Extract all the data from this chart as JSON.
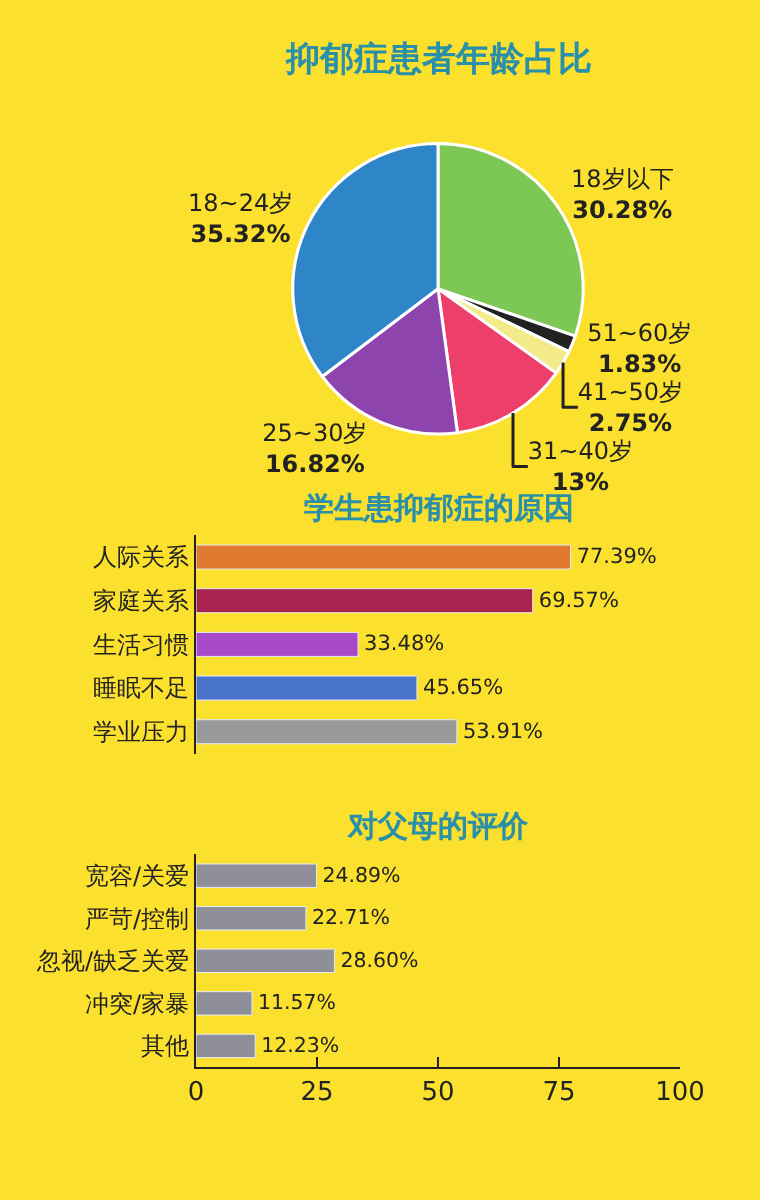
{
  "chart_data": [
    {
      "type": "pie",
      "title": "抑郁症患者年龄占比",
      "categories": [
        "18岁以下",
        "51~60岁",
        "41~50岁",
        "31~40岁",
        "25~30岁",
        "18~24岁"
      ],
      "values": [
        30.28,
        1.83,
        2.75,
        13,
        16.82,
        35.32
      ],
      "value_labels": [
        "30.28%",
        "1.83%",
        "2.75%",
        "13%",
        "16.82%",
        "35.32%"
      ],
      "colors": [
        "#7dc855",
        "#222222",
        "#f3ea8a",
        "#ee3f6b",
        "#8e44ad",
        "#2e86c8"
      ]
    },
    {
      "type": "bar",
      "orientation": "horizontal",
      "title": "学生患抑郁症的原因",
      "categories": [
        "人际关系",
        "家庭关系",
        "生活习惯",
        "睡眠不足",
        "学业压力"
      ],
      "values": [
        77.39,
        69.57,
        33.48,
        45.65,
        53.91
      ],
      "value_labels": [
        "77.39%",
        "69.57%",
        "33.48%",
        "45.65%",
        "53.91%"
      ],
      "colors": [
        "#e07a2e",
        "#a8244f",
        "#a64ac9",
        "#4a74c9",
        "#9a9a9a"
      ],
      "xlim": [
        0,
        100
      ],
      "xticks": [
        0,
        25,
        50,
        75,
        100
      ],
      "tick_labels": "y"
    },
    {
      "type": "bar",
      "orientation": "horizontal",
      "title": "对父母的评价",
      "categories": [
        "宽容/关爱",
        "严苛/控制",
        "忽视/缺乏关爱",
        "冲突/家暴",
        "其他"
      ],
      "values": [
        24.89,
        22.71,
        28.6,
        11.57,
        12.23
      ],
      "value_labels": [
        "24.89%",
        "22.71%",
        "28.60%",
        "11.57%",
        "12.23%"
      ],
      "color": "#8f8f99",
      "xlim": [
        0,
        100
      ],
      "xticks": [
        0,
        25,
        50,
        75,
        100
      ]
    }
  ]
}
